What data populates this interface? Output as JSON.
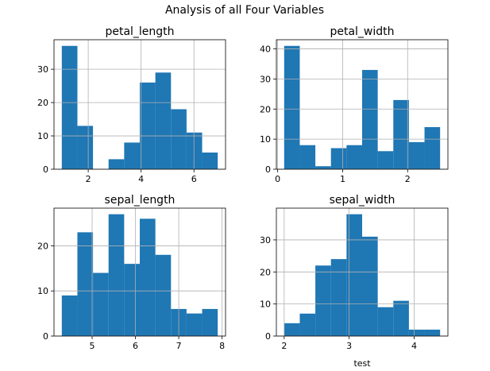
{
  "title": "Analysis of all Four Variables",
  "chart_data": [
    {
      "type": "histogram",
      "title": "petal_length",
      "color": "#1f77b4",
      "grid": true,
      "bins": [
        1.0,
        1.59,
        2.18,
        2.77,
        3.36,
        3.95,
        4.54,
        5.13,
        5.72,
        6.31,
        6.9
      ],
      "values": [
        37,
        13,
        0,
        3,
        8,
        26,
        29,
        18,
        11,
        5
      ],
      "xlim": [
        0.705,
        7.195
      ],
      "ylim": [
        0,
        38.85
      ],
      "xticks": [
        2,
        4,
        6
      ],
      "yticks": [
        0,
        10,
        20,
        30
      ]
    },
    {
      "type": "histogram",
      "title": "petal_width",
      "color": "#1f77b4",
      "grid": true,
      "bins": [
        0.1,
        0.34,
        0.58,
        0.82,
        1.06,
        1.3,
        1.54,
        1.78,
        2.02,
        2.26,
        2.5
      ],
      "values": [
        41,
        8,
        1,
        7,
        8,
        33,
        6,
        23,
        9,
        14
      ],
      "xlim": [
        -0.02,
        2.62
      ],
      "ylim": [
        0,
        43.05
      ],
      "xticks": [
        0,
        1,
        2
      ],
      "yticks": [
        0,
        10,
        20,
        30,
        40
      ]
    },
    {
      "type": "histogram",
      "title": "sepal_length",
      "color": "#1f77b4",
      "grid": true,
      "bins": [
        4.3,
        4.66,
        5.02,
        5.38,
        5.74,
        6.1,
        6.46,
        6.82,
        7.18,
        7.54,
        7.9
      ],
      "values": [
        9,
        23,
        14,
        27,
        16,
        26,
        18,
        6,
        5,
        6
      ],
      "xlim": [
        4.12,
        8.08
      ],
      "ylim": [
        0,
        28.35
      ],
      "xticks": [
        5,
        6,
        7,
        8
      ],
      "yticks": [
        0,
        10,
        20
      ]
    },
    {
      "type": "histogram",
      "title": "sepal_width",
      "xlabel": "test",
      "color": "#1f77b4",
      "grid": true,
      "bins": [
        2.0,
        2.24,
        2.48,
        2.72,
        2.96,
        3.2,
        3.44,
        3.68,
        3.92,
        4.16,
        4.4
      ],
      "values": [
        4,
        7,
        22,
        24,
        38,
        31,
        9,
        11,
        2,
        2
      ],
      "xlim": [
        1.88,
        4.52
      ],
      "ylim": [
        0,
        39.9
      ],
      "xticks": [
        2,
        3,
        4
      ],
      "yticks": [
        0,
        10,
        20,
        30
      ]
    }
  ]
}
